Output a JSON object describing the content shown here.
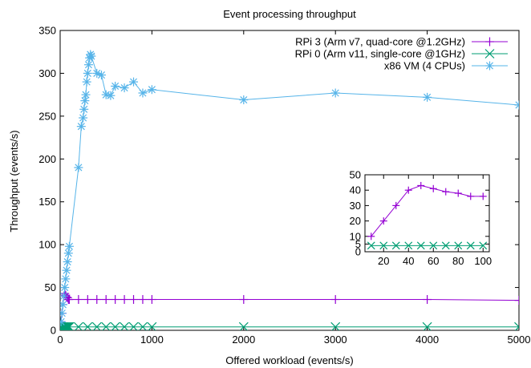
{
  "chart_data": [
    {
      "type": "line",
      "title": "Event processing throughput",
      "xlabel": "Offered workload (events/s)",
      "ylabel": "Throughput (events/s)",
      "xlim": [
        0,
        5000
      ],
      "ylim": [
        0,
        350
      ],
      "x_ticks": [
        "0",
        "1000",
        "2000",
        "3000",
        "4000",
        "5000"
      ],
      "y_ticks": [
        "0",
        "50",
        "100",
        "150",
        "200",
        "250",
        "300",
        "350"
      ],
      "legend_position": "top-right",
      "grid": false,
      "series": [
        {
          "name": "RPi 3 (Arm v7, quad-core @1.2GHz)",
          "color": "#9400d3",
          "marker": "plus",
          "x": [
            10,
            20,
            30,
            40,
            50,
            60,
            70,
            80,
            90,
            100,
            200,
            300,
            400,
            500,
            600,
            700,
            800,
            900,
            1000,
            2000,
            3000,
            4000,
            5000
          ],
          "y": [
            10,
            20,
            30,
            40,
            43,
            41,
            39,
            38,
            36,
            36,
            36,
            36,
            36,
            36,
            36,
            36,
            36,
            36,
            36,
            36,
            36,
            36,
            35
          ]
        },
        {
          "name": "RPi 0 (Arm v11, single-core @1GHz)",
          "color": "#009e73",
          "marker": "cross",
          "x": [
            10,
            20,
            30,
            40,
            50,
            60,
            70,
            80,
            90,
            100,
            200,
            300,
            400,
            500,
            600,
            700,
            800,
            900,
            1000,
            2000,
            3000,
            4000,
            5000
          ],
          "y": [
            4,
            4,
            4,
            4,
            4,
            4,
            4,
            4,
            4,
            4,
            4,
            4,
            4,
            4,
            4,
            4,
            4,
            4,
            4,
            4,
            4,
            4,
            4
          ]
        },
        {
          "name": "x86 VM (4 CPUs)",
          "color": "#56b4e9",
          "marker": "star",
          "x": [
            10,
            20,
            30,
            40,
            50,
            60,
            70,
            80,
            90,
            100,
            200,
            230,
            250,
            260,
            270,
            280,
            290,
            300,
            310,
            320,
            330,
            340,
            400,
            450,
            500,
            550,
            600,
            700,
            800,
            900,
            1000,
            2000,
            3000,
            4000,
            5000
          ],
          "y": [
            10,
            20,
            30,
            40,
            50,
            60,
            70,
            80,
            90,
            98,
            190,
            238,
            248,
            258,
            268,
            275,
            290,
            300,
            310,
            318,
            322,
            320,
            300,
            298,
            275,
            274,
            285,
            283,
            290,
            277,
            281,
            269,
            277,
            272,
            263
          ]
        }
      ]
    },
    {
      "type": "line",
      "title": "",
      "xlim": [
        5,
        105
      ],
      "ylim": [
        0,
        50
      ],
      "x_ticks": [
        "20",
        "40",
        "60",
        "80",
        "100"
      ],
      "y_ticks": [
        "0",
        "5",
        "10",
        "20",
        "30",
        "40",
        "50"
      ],
      "series": [
        {
          "color": "#9400d3",
          "marker": "plus",
          "x": [
            10,
            20,
            30,
            40,
            50,
            60,
            70,
            80,
            90,
            100
          ],
          "y": [
            10,
            20,
            30,
            40,
            43,
            41,
            39,
            38,
            36,
            36
          ]
        },
        {
          "color": "#009e73",
          "marker": "cross",
          "x": [
            10,
            20,
            30,
            40,
            50,
            60,
            70,
            80,
            90,
            100
          ],
          "y": [
            4,
            4,
            4,
            4,
            4,
            4,
            4,
            4,
            4,
            4
          ]
        }
      ]
    }
  ]
}
